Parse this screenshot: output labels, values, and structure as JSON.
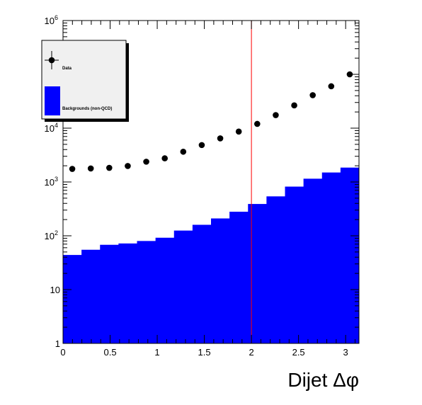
{
  "chart_data": {
    "type": "bar",
    "title": "",
    "xlabel": "Dijet Δφ",
    "ylabel": "",
    "log_y": true,
    "xlim": [
      0,
      3.1416
    ],
    "ylim": [
      1,
      1000000
    ],
    "x_ticks": [
      "0",
      "0.5",
      "1",
      "1.5",
      "2",
      "2.5",
      "3"
    ],
    "y_ticks": [
      {
        "value": 1,
        "label": "1",
        "exp": ""
      },
      {
        "value": 10,
        "label": "10",
        "exp": ""
      },
      {
        "value": 100,
        "label": "10",
        "exp": "2"
      },
      {
        "value": 1000,
        "label": "10",
        "exp": "3"
      },
      {
        "value": 10000,
        "label": "10",
        "exp": "4"
      },
      {
        "value": 100000,
        "label": "10",
        "exp": "5"
      },
      {
        "value": 1000000,
        "label": "10",
        "exp": "6"
      }
    ],
    "bin_edges": [
      0,
      0.19635,
      0.3927,
      0.58905,
      0.7854,
      0.98175,
      1.1781,
      1.37445,
      1.5708,
      1.76715,
      1.9635,
      2.15985,
      2.3562,
      2.55255,
      2.7489,
      2.94525,
      3.1416
    ],
    "series": [
      {
        "name": "Backgrounds (non-QCD)",
        "style": "filled-histogram",
        "color": "#0000ff",
        "values": [
          44,
          55,
          68,
          72,
          80,
          92,
          125,
          160,
          210,
          280,
          390,
          540,
          820,
          1150,
          1500,
          1850
        ]
      },
      {
        "name": "Data",
        "style": "markers",
        "color": "#000000",
        "values": [
          1750,
          1780,
          1830,
          1980,
          2380,
          2750,
          3650,
          4850,
          6450,
          8650,
          12000,
          17500,
          26500,
          41000,
          60000,
          100000
        ]
      }
    ],
    "reference_line": {
      "x": 2.0,
      "color": "#ff0000"
    },
    "legend": {
      "placement": "top-left",
      "entries": [
        {
          "label": "Data",
          "marker": "point-with-errors"
        },
        {
          "label": "Backgrounds (non-QCD)",
          "marker": "filled-box"
        }
      ]
    },
    "grid": false
  }
}
